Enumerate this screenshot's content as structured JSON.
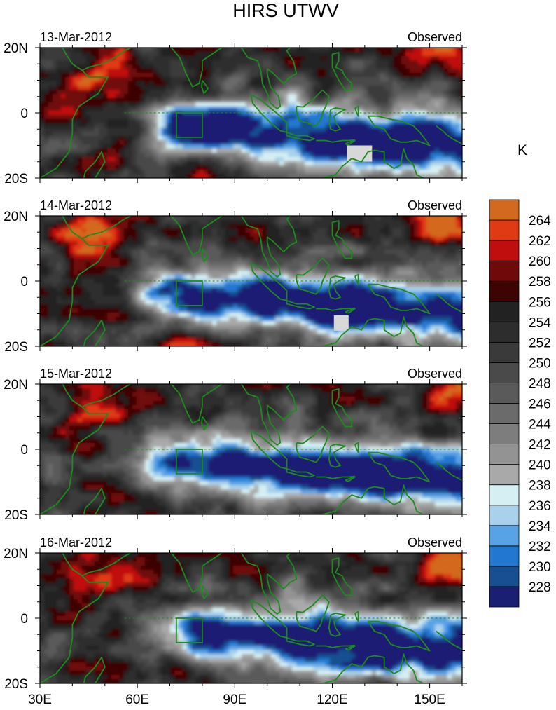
{
  "chart_data": {
    "type": "heatmap",
    "title": "HIRS UTWV",
    "unit": "K",
    "colorbar": {
      "levels": [
        228,
        230,
        232,
        234,
        236,
        238,
        240,
        242,
        244,
        246,
        248,
        250,
        252,
        254,
        256,
        258,
        260,
        262,
        264
      ],
      "colors": [
        "#1a1f74",
        "#174f92",
        "#2277cf",
        "#58a2e6",
        "#a9d1ec",
        "#d6eff3",
        "#a9a9a9",
        "#939393",
        "#7d7d7d",
        "#6b6b6b",
        "#5a5a5a",
        "#4a4a4a",
        "#3a3a3a",
        "#2d2d2d",
        "#222222",
        "#3d0404",
        "#700909",
        "#c00e0e",
        "#e03a14",
        "#d2691e"
      ]
    },
    "x_ticks": [
      "30E",
      "60E",
      "90E",
      "120E",
      "150E"
    ],
    "x_tick_values": [
      30,
      60,
      90,
      120,
      150
    ],
    "xlim": [
      30,
      160
    ],
    "y_ticks": [
      "20N",
      "0",
      "20S"
    ],
    "y_tick_values": [
      20,
      0,
      -20
    ],
    "ylim": [
      -20,
      20
    ],
    "panels": [
      {
        "date": "13-Mar-2012",
        "label": "Observed"
      },
      {
        "date": "14-Mar-2012",
        "label": "Observed"
      },
      {
        "date": "15-Mar-2012",
        "label": "Observed"
      },
      {
        "date": "16-Mar-2012",
        "label": "Observed"
      }
    ],
    "box_region": {
      "lon": [
        72,
        80
      ],
      "lat": [
        -7.5,
        0
      ]
    }
  }
}
